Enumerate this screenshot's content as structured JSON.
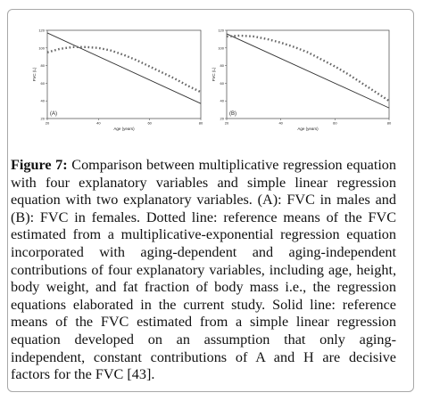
{
  "caption": {
    "label": "Figure 7:",
    "text": " Comparison between multiplicative regression equation with four explanatory variables and simple linear regression equation with two explanatory variables. (A): FVC in males and (B): FVC in females. Dotted line: reference means of the FVC estimated from a multiplicative-exponential regression equation incorporated with aging-dependent and aging-independent contributions of four explanatory variables, including age, height, body weight, and fat fraction of body mass i.e., the regression equations elaborated in the current study. Solid line: reference means of the FVC estimated from a simple linear regression equation developed on an assumption that only aging-independent, constant contributions of A and H are decisive factors for the FVC [43]."
  },
  "chart_data": [
    {
      "type": "line",
      "panel": "(A)",
      "xlabel": "Age (years)",
      "ylabel": "FVC (L)",
      "yticks": [
        "120",
        "100",
        "80",
        "60",
        "40",
        "20"
      ],
      "xticks": [
        "20",
        "40",
        "60",
        "80"
      ],
      "xlim": [
        20,
        80
      ],
      "ylim": [
        20,
        120
      ],
      "grid": false,
      "series": [
        {
          "style": "solid",
          "x": [
            20,
            80
          ],
          "y": [
            117,
            37
          ]
        },
        {
          "style": "dotted",
          "x": [
            20,
            25,
            30,
            35,
            40,
            45,
            50,
            55,
            60,
            65,
            70,
            75,
            80
          ],
          "y": [
            95,
            99,
            101,
            101,
            100,
            97,
            92,
            86,
            79,
            72,
            65,
            57,
            50
          ]
        }
      ]
    },
    {
      "type": "line",
      "panel": "(B)",
      "xlabel": "Age (years)",
      "ylabel": "FVC (L)",
      "yticks": [
        "120",
        "100",
        "80",
        "60",
        "40",
        "20"
      ],
      "xticks": [
        "20",
        "40",
        "60",
        "80"
      ],
      "xlim": [
        20,
        80
      ],
      "ylim": [
        20,
        120
      ],
      "grid": false,
      "series": [
        {
          "style": "solid",
          "x": [
            20,
            80
          ],
          "y": [
            116,
            32
          ]
        },
        {
          "style": "dotted",
          "x": [
            20,
            25,
            30,
            35,
            40,
            45,
            50,
            55,
            60,
            65,
            70,
            75,
            80
          ],
          "y": [
            113,
            114,
            113,
            110,
            106,
            101,
            95,
            87,
            79,
            70,
            60,
            50,
            40
          ]
        }
      ]
    }
  ]
}
